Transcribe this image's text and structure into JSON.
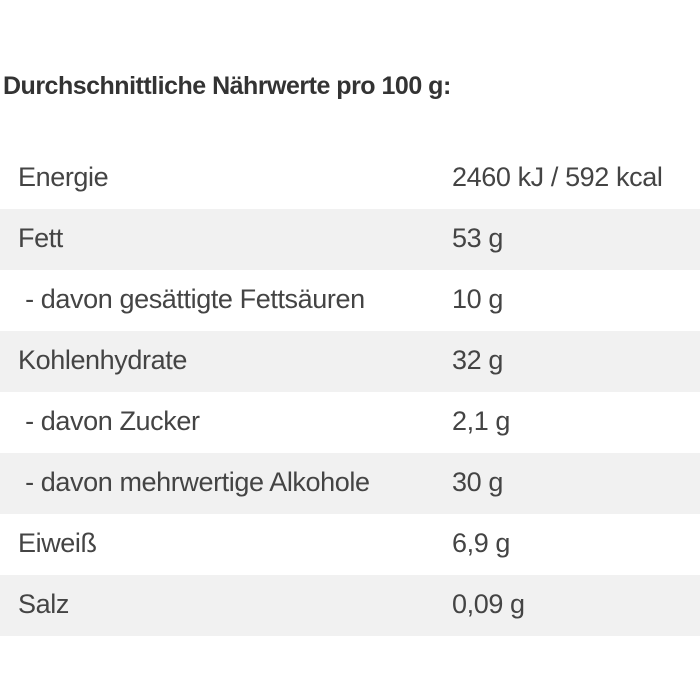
{
  "header": {
    "title": "Durchschnittliche Nährwerte pro 100 g:"
  },
  "table": {
    "rows": [
      [
        "Energie",
        "2460 kJ / 592 kcal"
      ],
      [
        "Fett",
        "53 g"
      ],
      [
        " - davon gesättigte Fettsäuren",
        "10 g"
      ],
      [
        "Kohlenhydrate",
        "32 g"
      ],
      [
        " - davon Zucker",
        "2,1 g"
      ],
      [
        " - davon mehrwertige Alkohole",
        "30 g"
      ],
      [
        "Eiweiß",
        "6,9 g"
      ],
      [
        "Salz",
        "0,09 g"
      ]
    ]
  }
}
